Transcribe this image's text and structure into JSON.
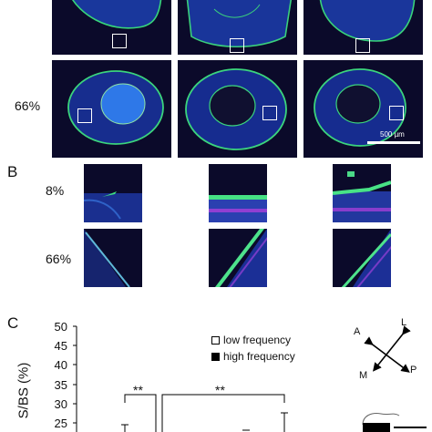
{
  "panel_a": {
    "row_labels": [
      "66%"
    ],
    "scale_bar": "500 µm"
  },
  "panel_b": {
    "letter": "B",
    "row_labels": [
      "8%",
      "66%"
    ]
  },
  "panel_c": {
    "letter": "C",
    "y_axis_label": "S/BS (%)",
    "y_ticks": [
      "50",
      "45",
      "40",
      "35",
      "30",
      "25"
    ],
    "legend": [
      "low frequency",
      "high frequency"
    ],
    "significance": [
      "**",
      "**"
    ],
    "compass": [
      "A",
      "L",
      "M",
      "P"
    ]
  }
}
